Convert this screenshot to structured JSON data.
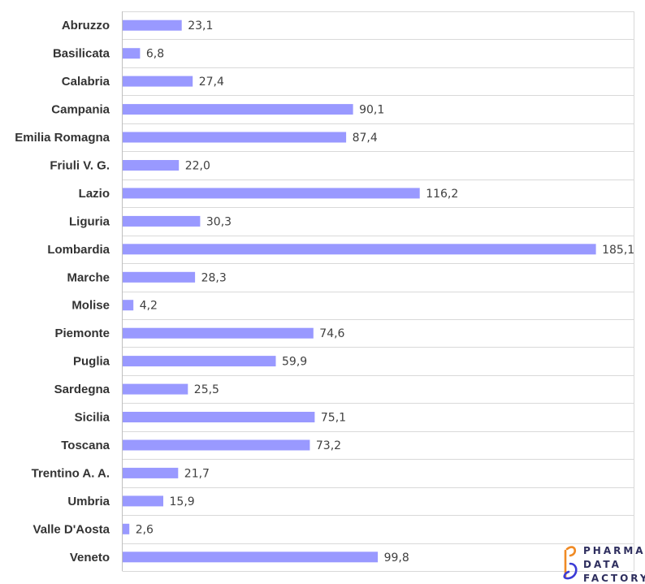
{
  "chart_data": {
    "type": "bar",
    "orientation": "horizontal",
    "categories": [
      "Abruzzo",
      "Basilicata",
      "Calabria",
      "Campania",
      "Emilia Romagna",
      "Friuli V. G.",
      "Lazio",
      "Liguria",
      "Lombardia",
      "Marche",
      "Molise",
      "Piemonte",
      "Puglia",
      "Sardegna",
      "Sicilia",
      "Toscana",
      "Trentino A. A.",
      "Umbria",
      "Valle D'Aosta",
      "Veneto"
    ],
    "values": [
      23.1,
      6.8,
      27.4,
      90.1,
      87.4,
      22.0,
      116.2,
      30.3,
      185.1,
      28.3,
      4.2,
      74.6,
      59.9,
      25.5,
      75.1,
      73.2,
      21.7,
      15.9,
      2.6,
      99.8
    ],
    "value_labels": [
      "23,1",
      "6,8",
      "27,4",
      "90,1",
      "87,4",
      "22,0",
      "116,2",
      "30,3",
      "185,1",
      "28,3",
      "4,2",
      "74,6",
      "59,9",
      "25,5",
      "75,1",
      "73,2",
      "21,7",
      "15,9",
      "2,6",
      "99,8"
    ],
    "xlim": [
      0,
      200
    ],
    "grid": true,
    "bar_color": "#9999ff",
    "grid_color": "#d9d9d9"
  },
  "logo": {
    "lines": [
      "PHARMA",
      "DATA",
      "FACTORY"
    ],
    "colors": [
      "#f08a24",
      "#3b3bd6"
    ]
  }
}
